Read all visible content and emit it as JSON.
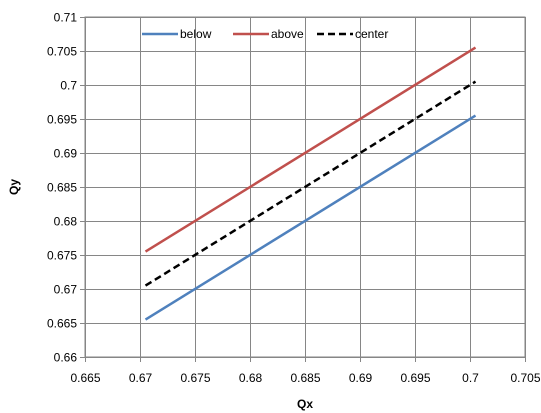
{
  "chart_data": {
    "type": "line",
    "title": "",
    "xlabel": "Qx",
    "ylabel": "Qy",
    "xlim": [
      0.665,
      0.705
    ],
    "ylim": [
      0.66,
      0.71
    ],
    "x_ticks": [
      0.665,
      0.67,
      0.675,
      0.68,
      0.685,
      0.69,
      0.695,
      0.7,
      0.705
    ],
    "x_tick_labels": [
      "0.665",
      "0.67",
      "0.675",
      "0.68",
      "0.685",
      "0.69",
      "0.695",
      "0.7",
      "0.705"
    ],
    "y_ticks": [
      0.66,
      0.665,
      0.67,
      0.675,
      0.68,
      0.685,
      0.69,
      0.695,
      0.7,
      0.705,
      0.71
    ],
    "y_tick_labels": [
      "0.66",
      "0.665",
      "0.67",
      "0.675",
      "0.68",
      "0.685",
      "0.69",
      "0.695",
      "0.7",
      "0.705",
      "0.71"
    ],
    "grid": true,
    "legend_position": "top",
    "series": [
      {
        "name": "below",
        "color": "#4f81bd",
        "style": "solid",
        "x": [
          0.6705,
          0.7005
        ],
        "y": [
          0.6655,
          0.6955
        ]
      },
      {
        "name": "above",
        "color": "#c0504d",
        "style": "solid",
        "x": [
          0.6705,
          0.7005
        ],
        "y": [
          0.6755,
          0.7055
        ]
      },
      {
        "name": "center",
        "color": "#000000",
        "style": "dashed",
        "x": [
          0.6705,
          0.7005
        ],
        "y": [
          0.6705,
          0.7005
        ]
      }
    ]
  }
}
